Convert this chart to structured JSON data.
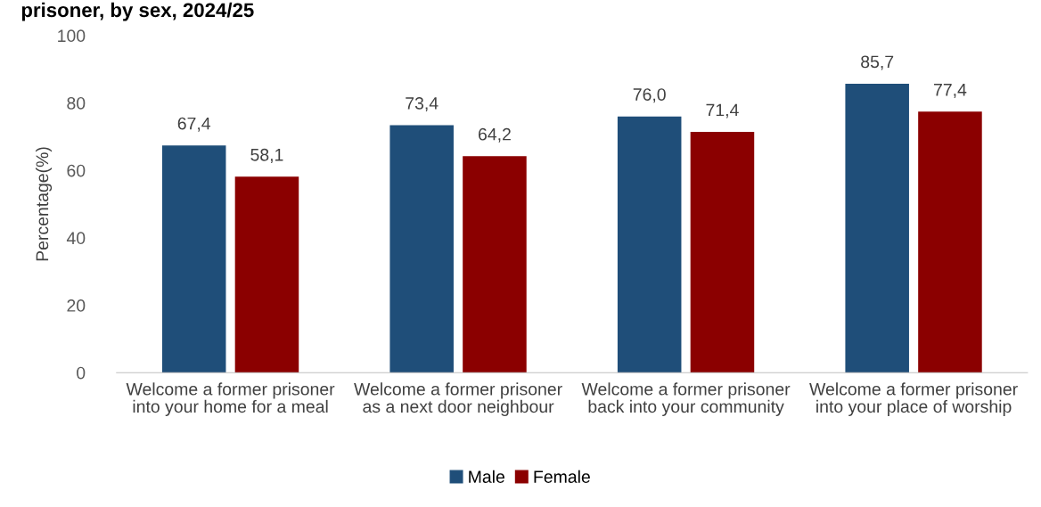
{
  "chart_data": {
    "type": "bar",
    "title": "prisoner, by sex, 2024/25",
    "ylabel": "Percentage(%)",
    "categories": [
      "Welcome a former prisoner into your home for a meal",
      "Welcome a former prisoner as a next door neighbour",
      "Welcome a former prisoner back into your community",
      "Welcome a former prisoner into your place of worship"
    ],
    "series": [
      {
        "name": "Male",
        "color": "#1f4e79",
        "values": [
          67.4,
          73.4,
          76.0,
          85.7
        ],
        "value_labels": [
          "67,4",
          "73,4",
          "76,0",
          "85,7"
        ]
      },
      {
        "name": "Female",
        "color": "#8b0000",
        "values": [
          58.1,
          64.2,
          71.4,
          77.4
        ],
        "value_labels": [
          "58,1",
          "64,2",
          "71,4",
          "77,4"
        ]
      }
    ],
    "ylim": [
      0,
      100
    ],
    "yticks": [
      0,
      20,
      40,
      60,
      80,
      100
    ],
    "grid": false,
    "legend": "bottom"
  }
}
